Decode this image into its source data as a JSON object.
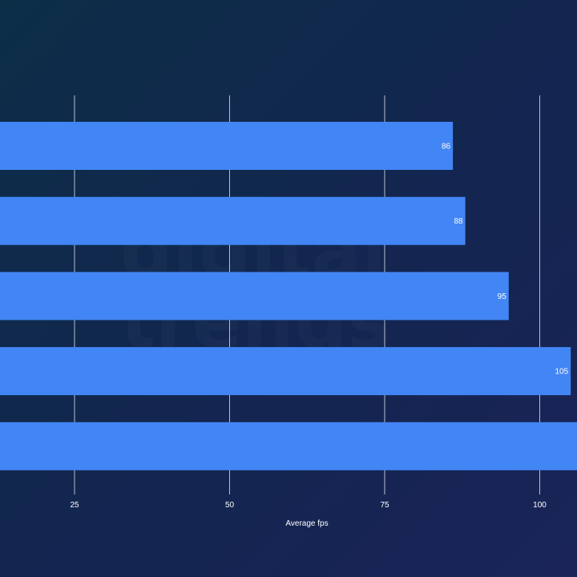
{
  "chart_data": {
    "type": "bar",
    "orientation": "horizontal",
    "values": [
      86,
      88,
      95,
      105,
      112
    ],
    "value_labels": [
      "86",
      "88",
      "95",
      "105",
      ""
    ],
    "xlabel": "Average fps",
    "xticks": [
      25,
      50,
      75,
      100
    ],
    "xtick_labels": [
      "25",
      "50",
      "75",
      "100"
    ],
    "grid": "vertical",
    "colors": {
      "bar": "#4285f4",
      "grid": "#b8bfcf",
      "text": "#ffffff"
    }
  },
  "watermark": "digital\ntrends"
}
